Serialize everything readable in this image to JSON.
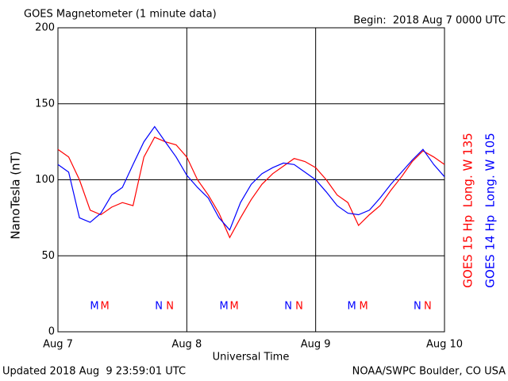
{
  "chart_data": {
    "type": "line",
    "title": "GOES Magnetometer (1 minute data)",
    "subtitle": "Begin:  2018 Aug 7 0000 UTC",
    "ylabel": "NanoTesla (nT)",
    "xlabel": "Universal Time",
    "footer_left": "Updated 2018 Aug  9 23:59:01 UTC",
    "footer_right": "NOAA/SWPC Boulder, CO USA",
    "xlim": [
      0,
      3
    ],
    "xticks": [
      {
        "value": 0,
        "label": "Aug 7"
      },
      {
        "value": 1,
        "label": "Aug 8"
      },
      {
        "value": 2,
        "label": "Aug 9"
      },
      {
        "value": 3,
        "label": "Aug 10"
      }
    ],
    "ylim": [
      0,
      200
    ],
    "yticks": [
      0,
      50,
      100,
      150,
      200
    ],
    "grid": true,
    "x": [
      0,
      0.083,
      0.167,
      0.25,
      0.333,
      0.417,
      0.5,
      0.583,
      0.667,
      0.75,
      0.833,
      0.917,
      1.0,
      1.083,
      1.167,
      1.25,
      1.333,
      1.417,
      1.5,
      1.583,
      1.667,
      1.75,
      1.833,
      1.917,
      2.0,
      2.083,
      2.167,
      2.25,
      2.333,
      2.417,
      2.5,
      2.583,
      2.667,
      2.75,
      2.833,
      2.917,
      3.0
    ],
    "series": [
      {
        "name": "GOES 15 Hp  Long. W 135",
        "color": "#ff0000",
        "values": [
          120,
          115,
          100,
          80,
          77,
          82,
          85,
          83,
          115,
          128,
          125,
          123,
          115,
          100,
          90,
          78,
          62,
          75,
          87,
          97,
          104,
          109,
          114,
          112,
          108,
          100,
          90,
          85,
          70,
          77,
          83,
          93,
          102,
          112,
          119,
          115,
          110
        ]
      },
      {
        "name": "GOES 14 Hp  Long. W 105",
        "color": "#0000ff",
        "values": [
          110,
          105,
          75,
          72,
          78,
          90,
          95,
          110,
          125,
          135,
          125,
          115,
          103,
          95,
          88,
          75,
          67,
          85,
          97,
          104,
          108,
          111,
          110,
          105,
          100,
          92,
          83,
          78,
          77,
          80,
          88,
          97,
          105,
          113,
          120,
          110,
          102
        ]
      }
    ],
    "annotations": [
      {
        "x": 0.283,
        "text": "M",
        "color": "#0000ff"
      },
      {
        "x": 0.364,
        "text": "M",
        "color": "#ff0000"
      },
      {
        "x": 0.783,
        "text": "N",
        "color": "#0000ff"
      },
      {
        "x": 0.869,
        "text": "N",
        "color": "#ff0000"
      },
      {
        "x": 1.288,
        "text": "M",
        "color": "#0000ff"
      },
      {
        "x": 1.368,
        "text": "M",
        "color": "#ff0000"
      },
      {
        "x": 1.787,
        "text": "N",
        "color": "#0000ff"
      },
      {
        "x": 1.873,
        "text": "N",
        "color": "#ff0000"
      },
      {
        "x": 2.28,
        "text": "M",
        "color": "#0000ff"
      },
      {
        "x": 2.372,
        "text": "M",
        "color": "#ff0000"
      },
      {
        "x": 2.79,
        "text": "N",
        "color": "#0000ff"
      },
      {
        "x": 2.87,
        "text": "N",
        "color": "#ff0000"
      }
    ]
  }
}
